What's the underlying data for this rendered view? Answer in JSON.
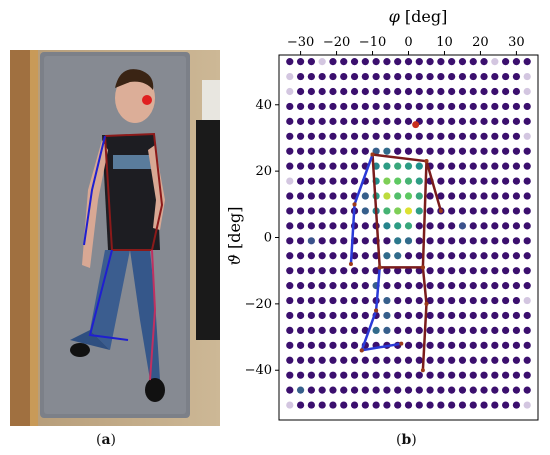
{
  "figure": {
    "panel_a": {
      "caption_open": "(",
      "caption_letter": "a",
      "caption_close": ")",
      "photo": {
        "skeleton_colors": {
          "body": "#8b1a1a",
          "left_limb": "#1f1fd0",
          "right_limb": "#c03060",
          "nose": "#e02020"
        }
      }
    },
    "panel_b": {
      "caption_open": "(",
      "caption_letter": "b",
      "caption_close": ")"
    }
  },
  "chart_data": {
    "type": "heatmap",
    "xlabel_symbol": "φ",
    "xlabel_unit": "[deg]",
    "ylabel_symbol": "ϑ",
    "ylabel_unit": "[deg]",
    "x_axis_position": "top",
    "xticks": [
      "−30",
      "−20",
      "−10",
      "0",
      "10",
      "20",
      "30"
    ],
    "xtick_values": [
      -30,
      -20,
      -10,
      0,
      10,
      20,
      30
    ],
    "yticks": [
      "40",
      "20",
      "0",
      "−20",
      "−40"
    ],
    "ytick_values": [
      40,
      20,
      0,
      -20,
      -40
    ],
    "xlim": [
      -36,
      36
    ],
    "ylim": [
      -55,
      55
    ],
    "grid_x": [
      -33,
      -30,
      -27,
      -24,
      -21,
      -18,
      -15,
      -12,
      -9,
      -6,
      -3,
      0,
      3,
      6,
      9,
      12,
      15,
      18,
      21,
      24,
      27,
      30,
      33
    ],
    "grid_y": [
      -50.5,
      -46,
      -41.5,
      -37,
      -32.5,
      -28,
      -23.5,
      -19,
      -14.5,
      -10,
      -5.5,
      -1,
      3.5,
      8,
      12.5,
      17,
      21.5,
      26,
      30.5,
      35,
      39.5,
      44,
      48.5,
      53
    ],
    "background_color": "#3b0f6e",
    "colormap": [
      "#440154",
      "#3b528b",
      "#21918c",
      "#5ec962",
      "#fde725"
    ],
    "hot_cells": [
      {
        "x": -9,
        "y": 21.5,
        "v": 0.45
      },
      {
        "x": -6,
        "y": 21.5,
        "v": 0.55
      },
      {
        "x": -3,
        "y": 21.5,
        "v": 0.6
      },
      {
        "x": 0,
        "y": 21.5,
        "v": 0.55
      },
      {
        "x": 3,
        "y": 21.5,
        "v": 0.5
      },
      {
        "x": -9,
        "y": 17,
        "v": 0.5
      },
      {
        "x": -6,
        "y": 17,
        "v": 0.8
      },
      {
        "x": -3,
        "y": 17,
        "v": 0.75
      },
      {
        "x": 0,
        "y": 17,
        "v": 0.65
      },
      {
        "x": 3,
        "y": 17,
        "v": 0.55
      },
      {
        "x": -9,
        "y": 12.5,
        "v": 0.55
      },
      {
        "x": -6,
        "y": 12.5,
        "v": 0.9
      },
      {
        "x": -3,
        "y": 12.5,
        "v": 0.7
      },
      {
        "x": 0,
        "y": 12.5,
        "v": 0.75
      },
      {
        "x": 3,
        "y": 12.5,
        "v": 0.6
      },
      {
        "x": -9,
        "y": 8,
        "v": 0.45
      },
      {
        "x": -6,
        "y": 8,
        "v": 0.65
      },
      {
        "x": -3,
        "y": 8,
        "v": 0.8
      },
      {
        "x": 0,
        "y": 8,
        "v": 0.95
      },
      {
        "x": 3,
        "y": 8,
        "v": 0.55
      },
      {
        "x": -6,
        "y": 3.5,
        "v": 0.45
      },
      {
        "x": -3,
        "y": 3.5,
        "v": 0.55
      },
      {
        "x": 0,
        "y": 3.5,
        "v": 0.6
      },
      {
        "x": -3,
        "y": -1,
        "v": 0.4
      },
      {
        "x": 0,
        "y": -1,
        "v": 0.35
      },
      {
        "x": -6,
        "y": -5.5,
        "v": 0.35
      },
      {
        "x": -3,
        "y": -5.5,
        "v": 0.35
      },
      {
        "x": -9,
        "y": 26,
        "v": 0.3
      },
      {
        "x": -6,
        "y": 26,
        "v": 0.35
      },
      {
        "x": -12,
        "y": 12.5,
        "v": 0.3
      },
      {
        "x": -12,
        "y": 8,
        "v": 0.3
      },
      {
        "x": -9,
        "y": -14.5,
        "v": 0.3
      },
      {
        "x": -6,
        "y": -19,
        "v": 0.3
      },
      {
        "x": -6,
        "y": -23.5,
        "v": 0.3
      },
      {
        "x": -9,
        "y": -28,
        "v": 0.35
      },
      {
        "x": -6,
        "y": -28,
        "v": 0.3
      },
      {
        "x": -30,
        "y": -46,
        "v": 0.3
      },
      {
        "x": -27,
        "y": -1,
        "v": 0.25
      },
      {
        "x": 15,
        "y": 3.5,
        "v": 0.25
      }
    ],
    "pale_cells": [
      {
        "x": -33,
        "y": 44
      },
      {
        "x": 33,
        "y": 44
      },
      {
        "x": -33,
        "y": -50.5
      },
      {
        "x": 33,
        "y": -50.5
      },
      {
        "x": -33,
        "y": 48.5
      },
      {
        "x": 33,
        "y": 48.5
      },
      {
        "x": 24,
        "y": 53
      },
      {
        "x": -24,
        "y": 53
      },
      {
        "x": -33,
        "y": 17
      },
      {
        "x": 33,
        "y": -19
      },
      {
        "x": 33,
        "y": 30.5
      }
    ],
    "skeleton": {
      "body_color": "#7a1c1c",
      "right_color": "#9b3a1a",
      "left_color": "#2a3ad8",
      "nose": {
        "x": 2,
        "y": 34,
        "color": "#c83020"
      },
      "segments_body": [
        [
          [
            -10,
            25
          ],
          [
            5,
            23
          ]
        ],
        [
          [
            -10,
            25
          ],
          [
            -8,
            -9
          ]
        ],
        [
          [
            5,
            23
          ],
          [
            4,
            -9
          ]
        ],
        [
          [
            -8,
            -9
          ],
          [
            4,
            -9
          ]
        ],
        [
          [
            5,
            23
          ],
          [
            9,
            8
          ]
        ],
        [
          [
            4,
            -9
          ],
          [
            5,
            -20
          ]
        ],
        [
          [
            5,
            -20
          ],
          [
            4,
            -40
          ]
        ]
      ],
      "segments_left": [
        [
          [
            -10,
            25
          ],
          [
            -15,
            10
          ]
        ],
        [
          [
            -15,
            10
          ],
          [
            -16,
            -8
          ]
        ],
        [
          [
            -8,
            -9
          ],
          [
            -9,
            -22
          ]
        ],
        [
          [
            -9,
            -22
          ],
          [
            -13,
            -34
          ]
        ],
        [
          [
            -13,
            -34
          ],
          [
            -2,
            -32
          ]
        ]
      ]
    }
  }
}
